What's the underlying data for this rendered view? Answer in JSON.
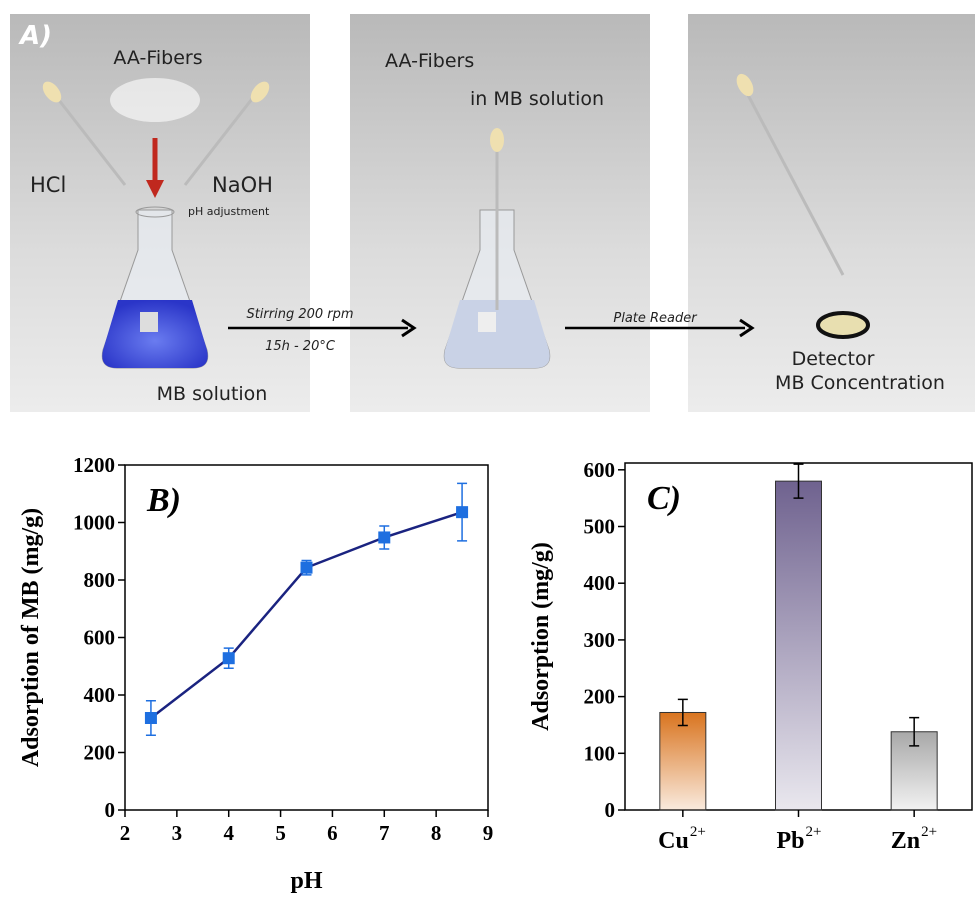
{
  "illustration": {
    "panel_label": "A)",
    "fibers_label": "AA-Fibers",
    "acid_label": "HCl",
    "base_label": "NaOH",
    "ph_label": "pH adjustment",
    "solution_label": "MB solution",
    "stirring_label": "Stirring 200 rpm",
    "conditions_label": "15h - 20°C",
    "fibers_label_2": "AA-Fibers",
    "in_solution_label": "in MB solution",
    "reader_label": "Plate Reader",
    "detector_label": "Detector",
    "concentration_label": "MB Concentration"
  },
  "chart_data": [
    {
      "type": "line",
      "title": "B)",
      "x_label": "pH",
      "y_label": "Adsorption of MB (mg/g)",
      "x": [
        2.5,
        4,
        5.5,
        7,
        8.5
      ],
      "values": [
        320,
        528,
        843,
        948,
        1036
      ],
      "errors": [
        60,
        35,
        25,
        40,
        100
      ],
      "color": "#1e6fe0",
      "line_color": "#1a2380",
      "xlim": [
        2,
        9
      ],
      "xticks": [
        2,
        3,
        4,
        5,
        6,
        7,
        8,
        9
      ],
      "ylim": [
        0,
        1200
      ],
      "yticks": [
        0,
        200,
        400,
        600,
        800,
        1000,
        1200
      ]
    },
    {
      "type": "bar",
      "title": "C)",
      "y_label": "Adsorption (mg/g)",
      "categories": [
        "Cu",
        "Pb",
        "Zn"
      ],
      "category_superscripts": [
        "2+",
        "2+",
        "2+"
      ],
      "values": [
        172,
        580,
        138
      ],
      "errors": [
        23,
        30,
        25
      ],
      "colors": [
        "#d9741f",
        "#6f628f",
        "#a8a8a8"
      ],
      "ylim": [
        0,
        612
      ],
      "yticks": [
        0,
        100,
        200,
        300,
        400,
        500,
        600
      ]
    }
  ]
}
